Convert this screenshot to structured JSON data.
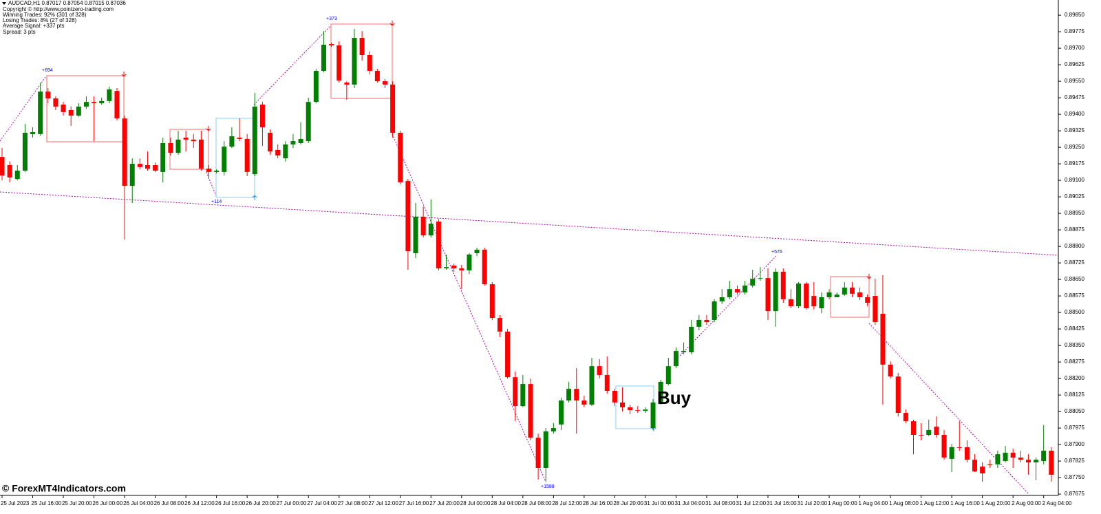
{
  "chart_data": {
    "type": "candlestick",
    "info_lines": [
      "AUDCAD,H1  0.87017 0.87054 0.87015 0.87036",
      "Copyright © http://www.pointzero-trading.com",
      "Winning Trades: 92% (301 of 328)",
      "Losing Trades: 8% (27 of 328)",
      "Average Signal: +337 pts",
      "Spread: 3 pts"
    ],
    "signals": [
      "+694",
      "+373",
      "+114",
      "+1588",
      "+576"
    ],
    "annotation": "Buy",
    "watermark": "© ForexMT4Indicators.com",
    "up_color": "#008000",
    "down_color": "#ff0000",
    "ylim": [
      0.87669,
      0.89919
    ],
    "yticks": [
      {
        "value": 0.8985,
        "label": "0.89850"
      },
      {
        "value": 0.89775,
        "label": "0.89775"
      },
      {
        "value": 0.897,
        "label": "0.89700"
      },
      {
        "value": 0.89625,
        "label": "0.89625"
      },
      {
        "value": 0.8955,
        "label": "0.89550"
      },
      {
        "value": 0.89475,
        "label": "0.89475"
      },
      {
        "value": 0.894,
        "label": "0.89400"
      },
      {
        "value": 0.89325,
        "label": "0.89325"
      },
      {
        "value": 0.8925,
        "label": "0.89250"
      },
      {
        "value": 0.89175,
        "label": "0.89175"
      },
      {
        "value": 0.891,
        "label": "0.89100"
      },
      {
        "value": 0.89025,
        "label": "0.89025"
      },
      {
        "value": 0.8895,
        "label": "0.88950"
      },
      {
        "value": 0.88875,
        "label": "0.88875"
      },
      {
        "value": 0.888,
        "label": "0.88800"
      },
      {
        "value": 0.88725,
        "label": "0.88725"
      },
      {
        "value": 0.8865,
        "label": "0.88650"
      },
      {
        "value": 0.88575,
        "label": "0.88575"
      },
      {
        "value": 0.885,
        "label": "0.88500"
      },
      {
        "value": 0.88425,
        "label": "0.88425"
      },
      {
        "value": 0.8835,
        "label": "0.88350"
      },
      {
        "value": 0.88275,
        "label": "0.88275"
      },
      {
        "value": 0.882,
        "label": "0.88200"
      },
      {
        "value": 0.88125,
        "label": "0.88125"
      },
      {
        "value": 0.8805,
        "label": "0.88050"
      },
      {
        "value": 0.87975,
        "label": "0.87975"
      },
      {
        "value": 0.879,
        "label": "0.87900"
      },
      {
        "value": 0.87825,
        "label": "0.87825"
      },
      {
        "value": 0.8775,
        "label": "0.87750"
      },
      {
        "value": 0.87675,
        "label": "0.87675"
      }
    ],
    "x_labels": [
      "25 Jul 2023",
      "25 Jul 16:00",
      "25 Jul 20:00",
      "26 Jul 00:00",
      "26 Jul 04:00",
      "26 Jul 08:00",
      "26 Jul 12:00",
      "26 Jul 16:00",
      "26 Jul 20:00",
      "27 Jul 00:00",
      "27 Jul 04:00",
      "27 Jul 08:00",
      "27 Jul 12:00",
      "27 Jul 16:00",
      "27 Jul 20:00",
      "28 Jul 00:00",
      "28 Jul 04:00",
      "28 Jul 08:00",
      "28 Jul 12:00",
      "28 Jul 16:00",
      "28 Jul 20:00",
      "31 Jul 00:00",
      "31 Jul 04:00",
      "31 Jul 08:00",
      "31 Jul 12:00",
      "31 Jul 16:00",
      "31 Jul 20:00",
      "1 Aug 00:00",
      "1 Aug 04:00",
      "1 Aug 08:00",
      "1 Aug 12:00",
      "1 Aug 16:00",
      "1 Aug 20:00",
      "2 Aug 00:00",
      "2 Aug 04:00"
    ],
    "ohlc": [
      [
        0.89206,
        0.89247,
        0.891,
        0.89122
      ],
      [
        0.89169,
        0.89185,
        0.89091,
        0.89113
      ],
      [
        0.89106,
        0.89169,
        0.891,
        0.89144
      ],
      [
        0.89144,
        0.89356,
        0.89138,
        0.89316
      ],
      [
        0.8931,
        0.89341,
        0.89294,
        0.89319
      ],
      [
        0.8931,
        0.89544,
        0.89303,
        0.89503
      ],
      [
        0.89503,
        0.89519,
        0.8945,
        0.89472
      ],
      [
        0.89472,
        0.89481,
        0.89419,
        0.89435
      ],
      [
        0.89444,
        0.89456,
        0.89394,
        0.8941
      ],
      [
        0.89419,
        0.89435,
        0.89347,
        0.89394
      ],
      [
        0.89394,
        0.8945,
        0.89388,
        0.89435
      ],
      [
        0.89435,
        0.89481,
        0.89425,
        0.89456
      ],
      [
        0.89456,
        0.89481,
        0.89278,
        0.8945
      ],
      [
        0.8945,
        0.89475,
        0.89444,
        0.8946
      ],
      [
        0.8946,
        0.89525,
        0.8945,
        0.89513
      ],
      [
        0.89506,
        0.89519,
        0.89372,
        0.89381
      ],
      [
        0.89381,
        0.89394,
        0.88831,
        0.89075
      ],
      [
        0.89075,
        0.892,
        0.88997,
        0.89175
      ],
      [
        0.89175,
        0.892,
        0.8915,
        0.8916
      ],
      [
        0.89169,
        0.89231,
        0.89144,
        0.89153
      ],
      [
        0.89169,
        0.89181,
        0.89138,
        0.89144
      ],
      [
        0.89138,
        0.89294,
        0.89091,
        0.89269
      ],
      [
        0.89269,
        0.89294,
        0.89213,
        0.89225
      ],
      [
        0.89225,
        0.89325,
        0.89216,
        0.89285
      ],
      [
        0.89294,
        0.89325,
        0.89231,
        0.89285
      ],
      [
        0.89285,
        0.8931,
        0.89247,
        0.89278
      ],
      [
        0.89285,
        0.89325,
        0.89144,
        0.89153
      ],
      [
        0.89153,
        0.89169,
        0.89106,
        0.89138
      ],
      [
        0.89138,
        0.8915,
        0.89131,
        0.89144
      ],
      [
        0.89138,
        0.89278,
        0.89122,
        0.89253
      ],
      [
        0.89253,
        0.89341,
        0.89247,
        0.893
      ],
      [
        0.89294,
        0.89381,
        0.89278,
        0.89288
      ],
      [
        0.89288,
        0.8931,
        0.89119,
        0.89138
      ],
      [
        0.89128,
        0.89497,
        0.89119,
        0.89435
      ],
      [
        0.89444,
        0.89456,
        0.89256,
        0.89341
      ],
      [
        0.89316,
        0.89331,
        0.89216,
        0.89231
      ],
      [
        0.89238,
        0.89263,
        0.892,
        0.89213
      ],
      [
        0.892,
        0.89278,
        0.89185,
        0.89263
      ],
      [
        0.89263,
        0.8931,
        0.89247,
        0.89278
      ],
      [
        0.89269,
        0.89363,
        0.89263,
        0.89288
      ],
      [
        0.89278,
        0.89475,
        0.89269,
        0.89456
      ],
      [
        0.89456,
        0.89606,
        0.8945,
        0.89597
      ],
      [
        0.89597,
        0.89778,
        0.89591,
        0.89716
      ],
      [
        0.89719,
        0.89725,
        0.89706,
        0.89713
      ],
      [
        0.89713,
        0.89731,
        0.89544,
        0.89553
      ],
      [
        0.89544,
        0.8955,
        0.89466,
        0.89535
      ],
      [
        0.89535,
        0.89788,
        0.89519,
        0.89747
      ],
      [
        0.89747,
        0.89778,
        0.89644,
        0.89669
      ],
      [
        0.89669,
        0.89685,
        0.89581,
        0.89597
      ],
      [
        0.89597,
        0.89606,
        0.89544,
        0.8955
      ],
      [
        0.8955,
        0.8956,
        0.89519,
        0.89535
      ],
      [
        0.89535,
        0.8955,
        0.89294,
        0.89316
      ],
      [
        0.89316,
        0.89325,
        0.89081,
        0.89091
      ],
      [
        0.89097,
        0.89106,
        0.88694,
        0.88778
      ],
      [
        0.88769,
        0.88997,
        0.88747,
        0.88935
      ],
      [
        0.88935,
        0.88981,
        0.88841,
        0.8885
      ],
      [
        0.8885,
        0.89013,
        0.88841,
        0.88903
      ],
      [
        0.88913,
        0.88925,
        0.88691,
        0.887
      ],
      [
        0.887,
        0.88763,
        0.88694,
        0.88706
      ],
      [
        0.88713,
        0.88722,
        0.88685,
        0.887
      ],
      [
        0.887,
        0.88716,
        0.88606,
        0.88691
      ],
      [
        0.88691,
        0.88769,
        0.88675,
        0.88763
      ],
      [
        0.88769,
        0.88794,
        0.88756,
        0.88785
      ],
      [
        0.88785,
        0.88794,
        0.88622,
        0.88628
      ],
      [
        0.88628,
        0.88638,
        0.88466,
        0.88475
      ],
      [
        0.88475,
        0.88488,
        0.88388,
        0.88413
      ],
      [
        0.88413,
        0.88425,
        0.882,
        0.88206
      ],
      [
        0.88206,
        0.88231,
        0.88006,
        0.88075
      ],
      [
        0.88075,
        0.88216,
        0.88069,
        0.88175
      ],
      [
        0.88175,
        0.882,
        0.87919,
        0.87931
      ],
      [
        0.87931,
        0.8795,
        0.87741,
        0.87794
      ],
      [
        0.87794,
        0.87975,
        0.87731,
        0.8796
      ],
      [
        0.8796,
        0.87997,
        0.8795,
        0.87975
      ],
      [
        0.87991,
        0.88113,
        0.87966,
        0.881
      ],
      [
        0.881,
        0.88185,
        0.88091,
        0.88153
      ],
      [
        0.88153,
        0.88247,
        0.8795,
        0.881
      ],
      [
        0.881,
        0.88122,
        0.88069,
        0.88081
      ],
      [
        0.88081,
        0.88294,
        0.88075,
        0.88256
      ],
      [
        0.88256,
        0.88288,
        0.882,
        0.88216
      ],
      [
        0.88216,
        0.883,
        0.88131,
        0.88144
      ],
      [
        0.88144,
        0.88153,
        0.88075,
        0.88091
      ],
      [
        0.88091,
        0.8816,
        0.8805,
        0.88069
      ],
      [
        0.88069,
        0.88081,
        0.88038,
        0.88056
      ],
      [
        0.88056,
        0.88075,
        0.88044,
        0.88053
      ],
      [
        0.88053,
        0.88069,
        0.88044,
        0.88059
      ],
      [
        0.87975,
        0.88106,
        0.87966,
        0.88091
      ],
      [
        0.88091,
        0.88194,
        0.88081,
        0.88185
      ],
      [
        0.88175,
        0.88294,
        0.88169,
        0.88256
      ],
      [
        0.88256,
        0.88341,
        0.88247,
        0.88325
      ],
      [
        0.88319,
        0.88363,
        0.8831,
        0.88325
      ],
      [
        0.88319,
        0.88466,
        0.8831,
        0.88435
      ],
      [
        0.88435,
        0.88488,
        0.88419,
        0.88466
      ],
      [
        0.88466,
        0.88488,
        0.88444,
        0.88456
      ],
      [
        0.88466,
        0.8856,
        0.88456,
        0.8855
      ],
      [
        0.8855,
        0.88606,
        0.88538,
        0.88569
      ],
      [
        0.88569,
        0.88644,
        0.8856,
        0.88606
      ],
      [
        0.88606,
        0.88622,
        0.88581,
        0.88591
      ],
      [
        0.88591,
        0.88644,
        0.88581,
        0.88622
      ],
      [
        0.88622,
        0.88694,
        0.88613,
        0.88653
      ],
      [
        0.88653,
        0.88706,
        0.88644,
        0.88656
      ],
      [
        0.88656,
        0.887,
        0.88466,
        0.88506
      ],
      [
        0.88506,
        0.887,
        0.88435,
        0.88685
      ],
      [
        0.88685,
        0.887,
        0.88544,
        0.8856
      ],
      [
        0.8856,
        0.88606,
        0.88519,
        0.88528
      ],
      [
        0.88528,
        0.88638,
        0.88519,
        0.88631
      ],
      [
        0.88631,
        0.88638,
        0.88513,
        0.88519
      ],
      [
        0.88575,
        0.88638,
        0.88513,
        0.88528
      ],
      [
        0.88519,
        0.88591,
        0.88497,
        0.88569
      ],
      [
        0.88569,
        0.88606,
        0.8856,
        0.88591
      ],
      [
        0.88569,
        0.88591,
        0.88569,
        0.88581
      ],
      [
        0.88581,
        0.88638,
        0.88575,
        0.88613
      ],
      [
        0.88613,
        0.88638,
        0.88569,
        0.88585
      ],
      [
        0.88591,
        0.88613,
        0.88556,
        0.88569
      ],
      [
        0.88569,
        0.88581,
        0.88528,
        0.88544
      ],
      [
        0.88575,
        0.88653,
        0.88444,
        0.88456
      ],
      [
        0.88494,
        0.88669,
        0.88081,
        0.88263
      ],
      [
        0.88263,
        0.88278,
        0.882,
        0.88209
      ],
      [
        0.88209,
        0.88225,
        0.88028,
        0.88044
      ],
      [
        0.88044,
        0.8806,
        0.87997,
        0.88006
      ],
      [
        0.88006,
        0.88013,
        0.87856,
        0.87944
      ],
      [
        0.87944,
        0.87997,
        0.87919,
        0.87941
      ],
      [
        0.87944,
        0.88013,
        0.87938,
        0.87966
      ],
      [
        0.87981,
        0.88028,
        0.87931,
        0.87944
      ],
      [
        0.87944,
        0.87966,
        0.87831,
        0.87841
      ],
      [
        0.87835,
        0.87903,
        0.87775,
        0.87888
      ],
      [
        0.87888,
        0.88006,
        0.87872,
        0.87885
      ],
      [
        0.87888,
        0.87919,
        0.87819,
        0.87831
      ],
      [
        0.87831,
        0.87856,
        0.87775,
        0.87778
      ],
      [
        0.878,
        0.87819,
        0.87731,
        0.87769
      ],
      [
        0.8781,
        0.87831,
        0.87794,
        0.87806
      ],
      [
        0.8781,
        0.87872,
        0.87794,
        0.87856
      ],
      [
        0.87825,
        0.87894,
        0.87819,
        0.87863
      ],
      [
        0.87863,
        0.87881,
        0.87794,
        0.87841
      ],
      [
        0.87841,
        0.87872,
        0.87819,
        0.87831
      ],
      [
        0.87831,
        0.87856,
        0.87763,
        0.87819
      ],
      [
        0.87819,
        0.87841,
        0.87738,
        0.87831
      ],
      [
        0.87825,
        0.87988,
        0.8781,
        0.87872
      ],
      [
        0.87872,
        0.87888,
        0.87731,
        0.87763
      ]
    ]
  }
}
